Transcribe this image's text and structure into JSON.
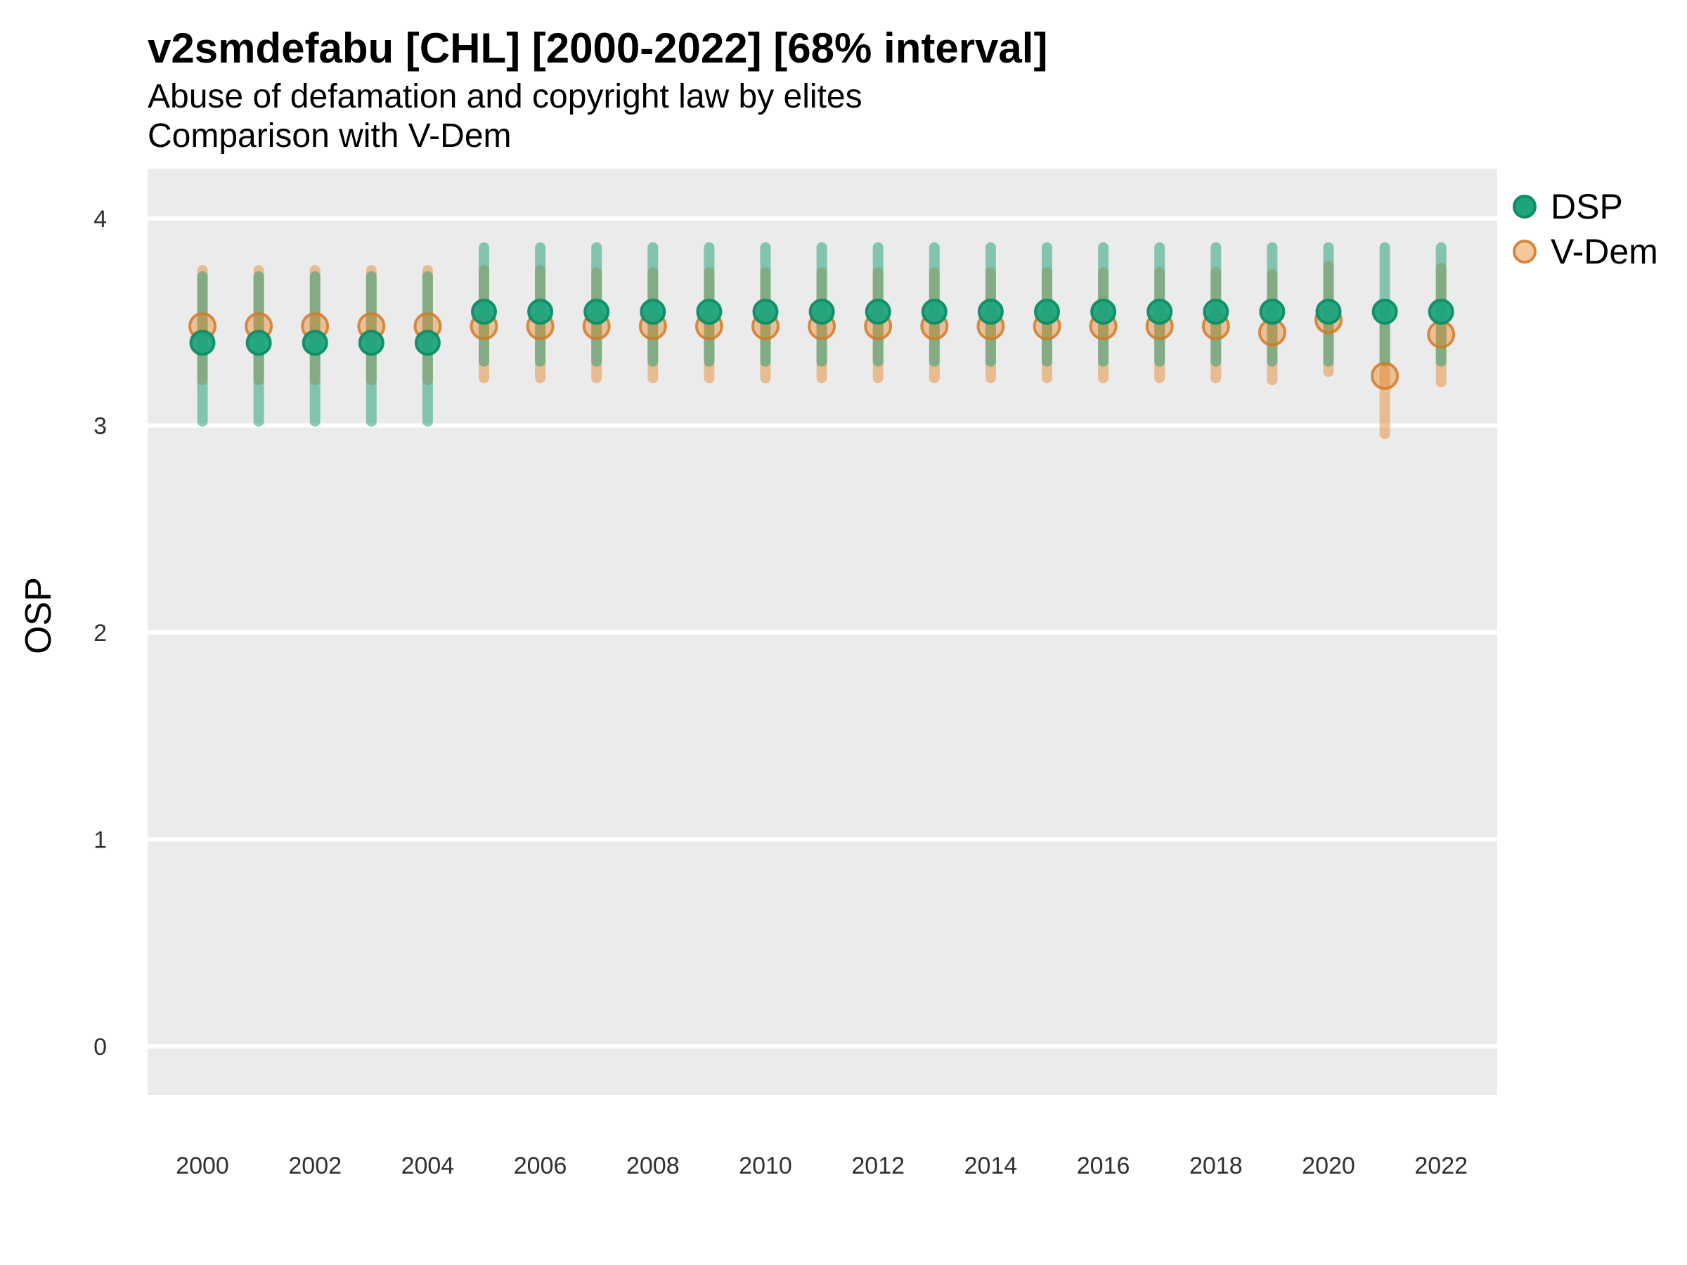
{
  "chart_data": {
    "type": "scatter",
    "title": "v2smdefabu [CHL] [2000-2022] [68% interval]",
    "subtitle": "Abuse of defamation and copyright law by elites",
    "subtitle2": "Comparison with V-Dem",
    "ylabel": "OSP",
    "yticks": [
      0,
      1,
      2,
      3,
      4
    ],
    "xticks": [
      2000,
      2002,
      2004,
      2006,
      2008,
      2010,
      2012,
      2014,
      2016,
      2018,
      2020,
      2022
    ],
    "ylim": [
      -0.24,
      4.24
    ],
    "xlim": [
      1999,
      2023
    ],
    "panel_bg": "#ebebeb",
    "gridline_color": "#ffffff",
    "tick_label_color": "#303030",
    "legend_position": "right",
    "legend": [
      {
        "label": "DSP",
        "color": "#1b9e77"
      },
      {
        "label": "V-Dem",
        "color": "#e6862b"
      }
    ],
    "series": [
      {
        "name": "DSP",
        "color": "#1b9e77",
        "points": [
          {
            "year": 2000,
            "value": 3.4,
            "lo": 3.02,
            "hi": 3.72
          },
          {
            "year": 2001,
            "value": 3.4,
            "lo": 3.02,
            "hi": 3.72
          },
          {
            "year": 2002,
            "value": 3.4,
            "lo": 3.02,
            "hi": 3.72
          },
          {
            "year": 2003,
            "value": 3.4,
            "lo": 3.02,
            "hi": 3.72
          },
          {
            "year": 2004,
            "value": 3.4,
            "lo": 3.02,
            "hi": 3.72
          },
          {
            "year": 2005,
            "value": 3.55,
            "lo": 3.31,
            "hi": 3.86
          },
          {
            "year": 2006,
            "value": 3.55,
            "lo": 3.31,
            "hi": 3.86
          },
          {
            "year": 2007,
            "value": 3.55,
            "lo": 3.31,
            "hi": 3.86
          },
          {
            "year": 2008,
            "value": 3.55,
            "lo": 3.31,
            "hi": 3.86
          },
          {
            "year": 2009,
            "value": 3.55,
            "lo": 3.31,
            "hi": 3.86
          },
          {
            "year": 2010,
            "value": 3.55,
            "lo": 3.31,
            "hi": 3.86
          },
          {
            "year": 2011,
            "value": 3.55,
            "lo": 3.31,
            "hi": 3.86
          },
          {
            "year": 2012,
            "value": 3.55,
            "lo": 3.31,
            "hi": 3.86
          },
          {
            "year": 2013,
            "value": 3.55,
            "lo": 3.31,
            "hi": 3.86
          },
          {
            "year": 2014,
            "value": 3.55,
            "lo": 3.31,
            "hi": 3.86
          },
          {
            "year": 2015,
            "value": 3.55,
            "lo": 3.31,
            "hi": 3.86
          },
          {
            "year": 2016,
            "value": 3.55,
            "lo": 3.31,
            "hi": 3.86
          },
          {
            "year": 2017,
            "value": 3.55,
            "lo": 3.31,
            "hi": 3.86
          },
          {
            "year": 2018,
            "value": 3.55,
            "lo": 3.31,
            "hi": 3.86
          },
          {
            "year": 2019,
            "value": 3.55,
            "lo": 3.31,
            "hi": 3.86
          },
          {
            "year": 2020,
            "value": 3.55,
            "lo": 3.31,
            "hi": 3.86
          },
          {
            "year": 2021,
            "value": 3.55,
            "lo": 3.31,
            "hi": 3.86
          },
          {
            "year": 2022,
            "value": 3.55,
            "lo": 3.31,
            "hi": 3.86
          }
        ]
      },
      {
        "name": "V-Dem",
        "color": "#e6862b",
        "points": [
          {
            "year": 2000,
            "value": 3.48,
            "lo": 3.22,
            "hi": 3.75
          },
          {
            "year": 2001,
            "value": 3.48,
            "lo": 3.22,
            "hi": 3.75
          },
          {
            "year": 2002,
            "value": 3.48,
            "lo": 3.22,
            "hi": 3.75
          },
          {
            "year": 2003,
            "value": 3.48,
            "lo": 3.22,
            "hi": 3.75
          },
          {
            "year": 2004,
            "value": 3.48,
            "lo": 3.22,
            "hi": 3.75
          },
          {
            "year": 2005,
            "value": 3.48,
            "lo": 3.23,
            "hi": 3.75
          },
          {
            "year": 2006,
            "value": 3.48,
            "lo": 3.23,
            "hi": 3.75
          },
          {
            "year": 2007,
            "value": 3.48,
            "lo": 3.23,
            "hi": 3.74
          },
          {
            "year": 2008,
            "value": 3.48,
            "lo": 3.23,
            "hi": 3.74
          },
          {
            "year": 2009,
            "value": 3.48,
            "lo": 3.23,
            "hi": 3.74
          },
          {
            "year": 2010,
            "value": 3.48,
            "lo": 3.23,
            "hi": 3.74
          },
          {
            "year": 2011,
            "value": 3.48,
            "lo": 3.23,
            "hi": 3.74
          },
          {
            "year": 2012,
            "value": 3.48,
            "lo": 3.23,
            "hi": 3.74
          },
          {
            "year": 2013,
            "value": 3.48,
            "lo": 3.23,
            "hi": 3.74
          },
          {
            "year": 2014,
            "value": 3.48,
            "lo": 3.23,
            "hi": 3.74
          },
          {
            "year": 2015,
            "value": 3.48,
            "lo": 3.23,
            "hi": 3.74
          },
          {
            "year": 2016,
            "value": 3.48,
            "lo": 3.23,
            "hi": 3.74
          },
          {
            "year": 2017,
            "value": 3.48,
            "lo": 3.23,
            "hi": 3.74
          },
          {
            "year": 2018,
            "value": 3.48,
            "lo": 3.23,
            "hi": 3.74
          },
          {
            "year": 2019,
            "value": 3.45,
            "lo": 3.22,
            "hi": 3.73
          },
          {
            "year": 2020,
            "value": 3.51,
            "lo": 3.26,
            "hi": 3.77
          },
          {
            "year": 2021,
            "value": 3.24,
            "lo": 2.96,
            "hi": 3.5
          },
          {
            "year": 2022,
            "value": 3.44,
            "lo": 3.21,
            "hi": 3.76
          }
        ]
      }
    ]
  }
}
